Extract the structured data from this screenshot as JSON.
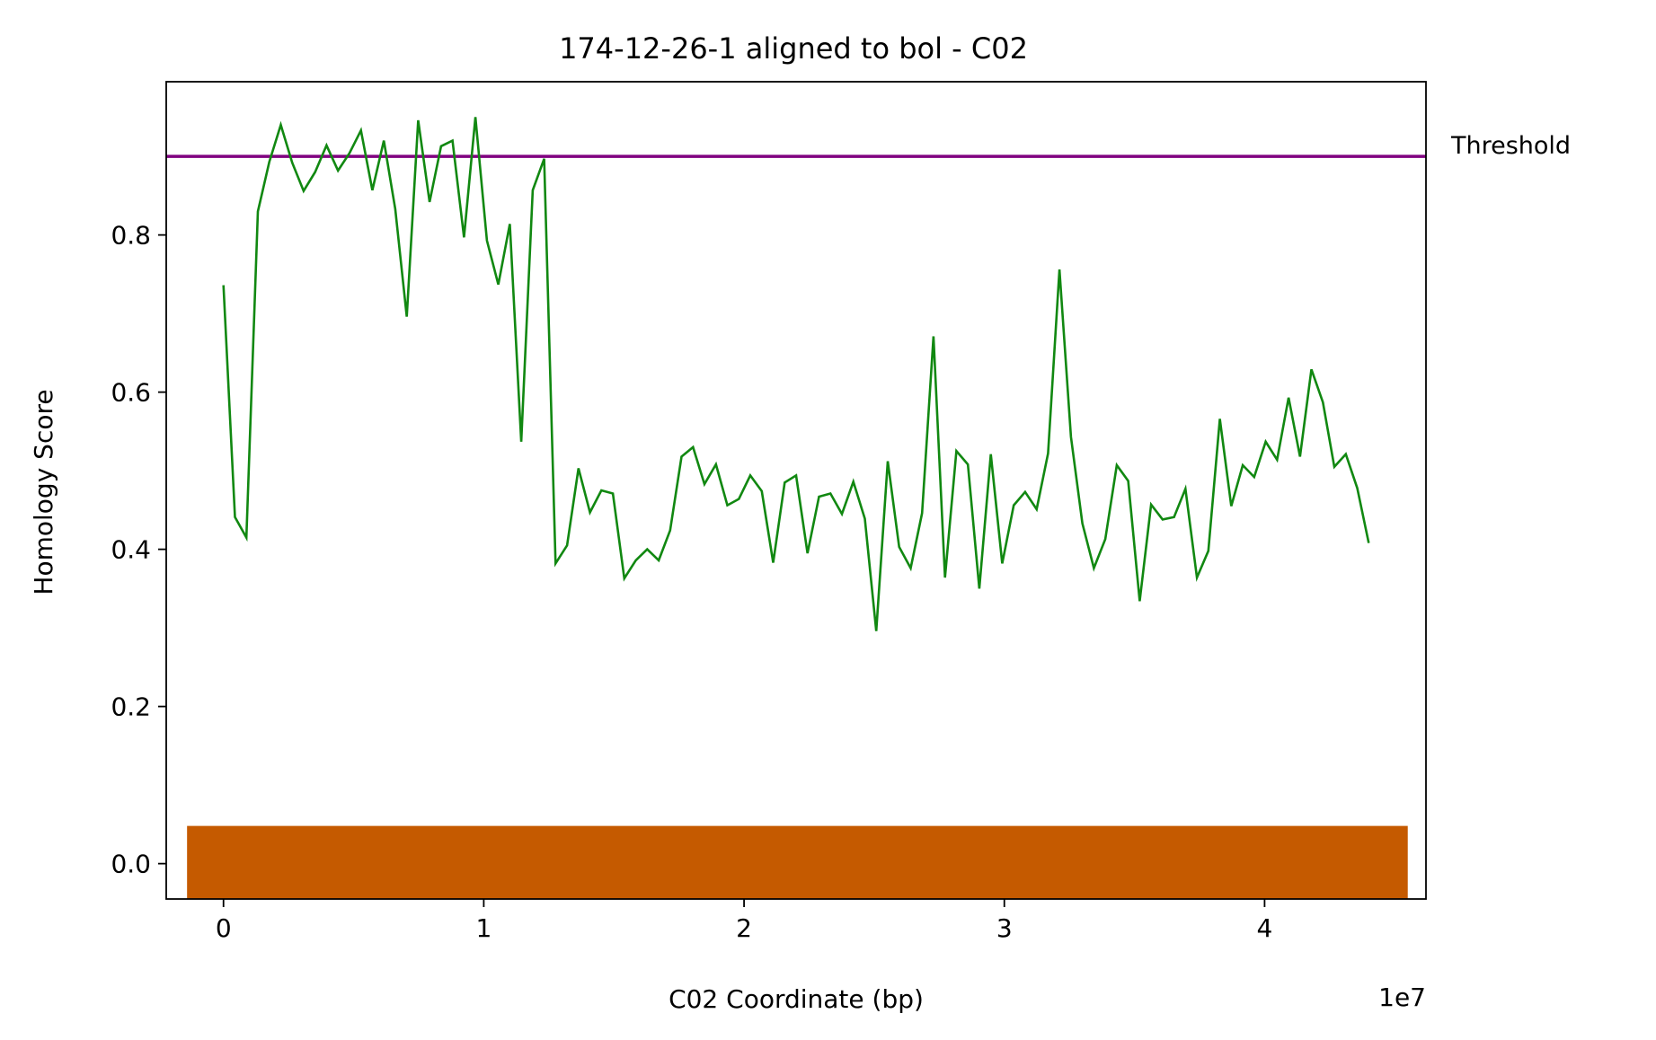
{
  "chart_data": {
    "type": "line",
    "title": "174-12-26-1 aligned to bol - C02",
    "xlabel": "C02 Coordinate (bp)",
    "ylabel": "Homology Score",
    "x_offset_label": "1e7",
    "xlim": [
      -2200000,
      46200000
    ],
    "ylim": [
      -0.045,
      0.995
    ],
    "x_ticks": [
      0,
      10000000,
      20000000,
      30000000,
      40000000
    ],
    "x_tick_labels": [
      "0",
      "1",
      "2",
      "3",
      "4"
    ],
    "y_ticks": [
      0.0,
      0.2,
      0.4,
      0.6,
      0.8
    ],
    "y_tick_labels": [
      "0.0",
      "0.2",
      "0.4",
      "0.6",
      "0.8"
    ],
    "grid": false,
    "threshold": {
      "label": "Threshold",
      "value": 0.9,
      "color": "#800080"
    },
    "chromosome_bar": {
      "x_start": -1400000,
      "x_end": 45500000,
      "y_start": -0.045,
      "y_end": 0.048,
      "color": "#c55a00"
    },
    "series": [
      {
        "color": "#118811",
        "x": [
          0,
          440000,
          880000,
          1320000,
          1760000,
          2200000,
          2640000,
          3080000,
          3520000,
          3960000,
          4400000,
          4840000,
          5280000,
          5720000,
          6160000,
          6600000,
          7040000,
          7480000,
          7920000,
          8360000,
          8800000,
          9240000,
          9680000,
          10120000,
          10560000,
          11000000,
          11440000,
          11880000,
          12320000,
          12760000,
          13200000,
          13640000,
          14080000,
          14520000,
          14960000,
          15400000,
          15840000,
          16280000,
          16720000,
          17160000,
          17600000,
          18040000,
          18480000,
          18920000,
          19360000,
          19800000,
          20240000,
          20680000,
          21120000,
          21560000,
          22000000,
          22440000,
          22880000,
          23320000,
          23760000,
          24200000,
          24640000,
          25080000,
          25520000,
          25960000,
          26400000,
          26840000,
          27280000,
          27720000,
          28160000,
          28600000,
          29040000,
          29480000,
          29920000,
          30360000,
          30800000,
          31240000,
          31680000,
          32120000,
          32560000,
          33000000,
          33440000,
          33880000,
          34320000,
          34760000,
          35200000,
          35640000,
          36080000,
          36520000,
          36960000,
          37400000,
          37840000,
          38280000,
          38720000,
          39160000,
          39600000,
          40040000,
          40480000,
          40920000,
          41360000,
          41800000,
          42240000,
          42680000,
          43120000,
          43560000,
          44000000
        ],
        "y": [
          0.736,
          0.441,
          0.415,
          0.83,
          0.893,
          0.94,
          0.892,
          0.856,
          0.88,
          0.914,
          0.882,
          0.904,
          0.933,
          0.857,
          0.92,
          0.833,
          0.696,
          0.946,
          0.842,
          0.913,
          0.92,
          0.797,
          0.95,
          0.793,
          0.737,
          0.814,
          0.537,
          0.857,
          0.897,
          0.382,
          0.405,
          0.503,
          0.447,
          0.475,
          0.471,
          0.363,
          0.386,
          0.4,
          0.386,
          0.424,
          0.518,
          0.53,
          0.483,
          0.508,
          0.456,
          0.464,
          0.494,
          0.474,
          0.383,
          0.485,
          0.494,
          0.395,
          0.467,
          0.471,
          0.445,
          0.486,
          0.439,
          0.296,
          0.512,
          0.403,
          0.376,
          0.446,
          0.671,
          0.364,
          0.525,
          0.508,
          0.35,
          0.521,
          0.382,
          0.456,
          0.473,
          0.451,
          0.522,
          0.756,
          0.543,
          0.433,
          0.376,
          0.413,
          0.507,
          0.487,
          0.334,
          0.457,
          0.438,
          0.441,
          0.477,
          0.364,
          0.398,
          0.566,
          0.455,
          0.507,
          0.492,
          0.537,
          0.514,
          0.593,
          0.518,
          0.629,
          0.587,
          0.505,
          0.521,
          0.478,
          0.408
        ]
      }
    ]
  }
}
